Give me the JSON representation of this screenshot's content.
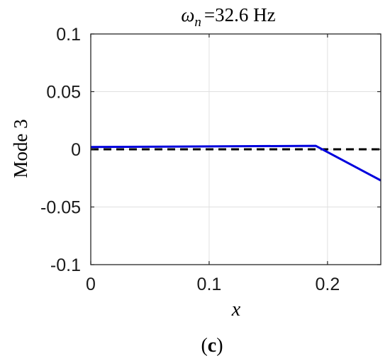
{
  "chart_data": {
    "type": "line",
    "title_symbol": "ω",
    "title_subscript": "n",
    "title_rest": "=32.6 Hz",
    "xlabel": "x",
    "ylabel": "Mode 3",
    "xlim": [
      0,
      0.245
    ],
    "ylim": [
      -0.1,
      0.1
    ],
    "x_ticks": [
      0,
      0.1,
      0.2
    ],
    "x_tick_labels": [
      "0",
      "0.1",
      "0.2"
    ],
    "y_ticks": [
      0.1,
      0.05,
      0,
      -0.05,
      -0.1
    ],
    "y_tick_labels": [
      "0.1",
      "0.05",
      "0",
      "-0.05",
      "-0.1"
    ],
    "grid": true,
    "series": [
      {
        "color": "#0000dd",
        "style": "solid",
        "x": [
          0,
          0.1,
          0.19,
          0.245
        ],
        "y": [
          0.002,
          0.0025,
          0.003,
          -0.027
        ]
      },
      {
        "color": "#000000",
        "style": "dashed",
        "x": [
          0,
          0.245
        ],
        "y": [
          0,
          0
        ]
      }
    ]
  },
  "caption": {
    "open": "(",
    "letter": "c",
    "close": ")"
  }
}
